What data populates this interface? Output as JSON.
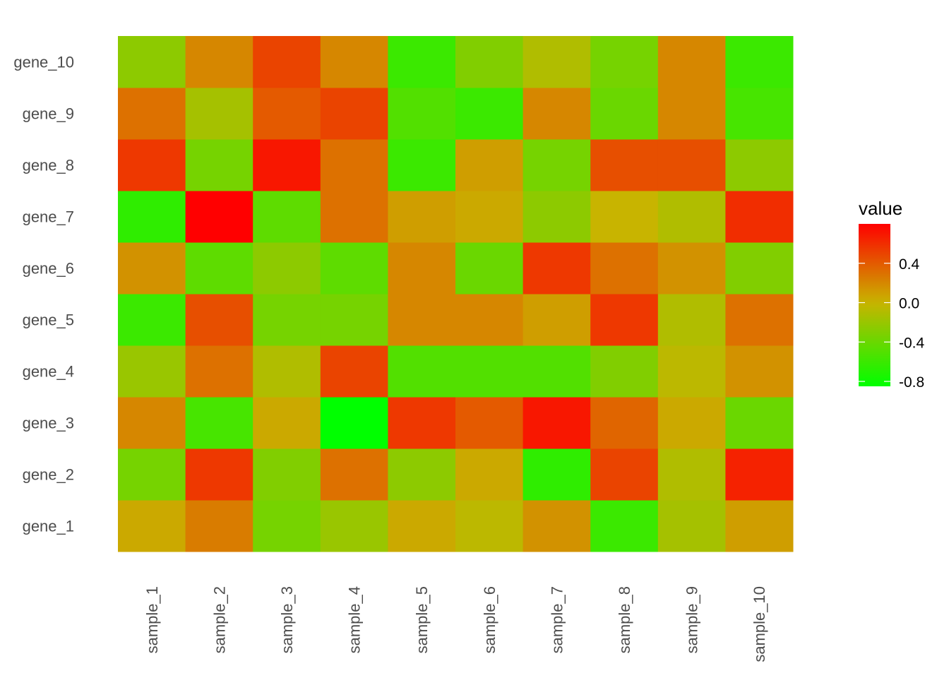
{
  "chart_data": {
    "type": "heatmap",
    "x_categories": [
      "sample_1",
      "sample_2",
      "sample_3",
      "sample_4",
      "sample_5",
      "sample_6",
      "sample_7",
      "sample_8",
      "sample_9",
      "sample_10"
    ],
    "y_categories": [
      "gene_1",
      "gene_2",
      "gene_3",
      "gene_4",
      "gene_5",
      "gene_6",
      "gene_7",
      "gene_8",
      "gene_9",
      "gene_10"
    ],
    "values": [
      [
        0.05,
        0.25,
        -0.35,
        -0.2,
        0.05,
        -0.05,
        0.15,
        -0.6,
        -0.15,
        0.1
      ],
      [
        -0.35,
        0.55,
        -0.3,
        0.3,
        -0.25,
        0.05,
        -0.65,
        0.5,
        -0.1,
        0.65
      ],
      [
        0.2,
        -0.55,
        0.05,
        -0.85,
        0.55,
        0.4,
        0.7,
        0.35,
        0.05,
        -0.4
      ],
      [
        -0.2,
        0.3,
        -0.1,
        0.5,
        -0.5,
        -0.5,
        -0.5,
        -0.3,
        -0.05,
        0.15
      ],
      [
        -0.6,
        0.45,
        -0.35,
        -0.35,
        0.2,
        0.2,
        0.1,
        0.55,
        -0.1,
        0.3
      ],
      [
        0.15,
        -0.45,
        -0.25,
        -0.45,
        0.2,
        -0.4,
        0.55,
        0.3,
        0.15,
        -0.3
      ],
      [
        -0.65,
        0.8,
        -0.45,
        0.3,
        0.1,
        0.05,
        -0.25,
        0.0,
        -0.1,
        0.6
      ],
      [
        0.55,
        -0.35,
        0.7,
        0.3,
        -0.6,
        0.1,
        -0.35,
        0.45,
        0.45,
        -0.25
      ],
      [
        0.3,
        -0.15,
        0.4,
        0.5,
        -0.5,
        -0.6,
        0.2,
        -0.4,
        0.2,
        -0.55
      ],
      [
        -0.25,
        0.2,
        0.5,
        0.2,
        -0.6,
        -0.3,
        -0.1,
        -0.35,
        0.2,
        -0.6
      ]
    ],
    "legend": {
      "title": "value",
      "breaks": [
        0.4,
        0.0,
        -0.4,
        -0.8
      ],
      "labels": [
        "0.4",
        "0.0",
        "-0.4",
        "-0.8"
      ],
      "range": [
        -0.85,
        0.8
      ],
      "placement": "right"
    },
    "color_low": "#00ff00",
    "color_mid": "#c8b400",
    "color_high": "#ff0000"
  }
}
